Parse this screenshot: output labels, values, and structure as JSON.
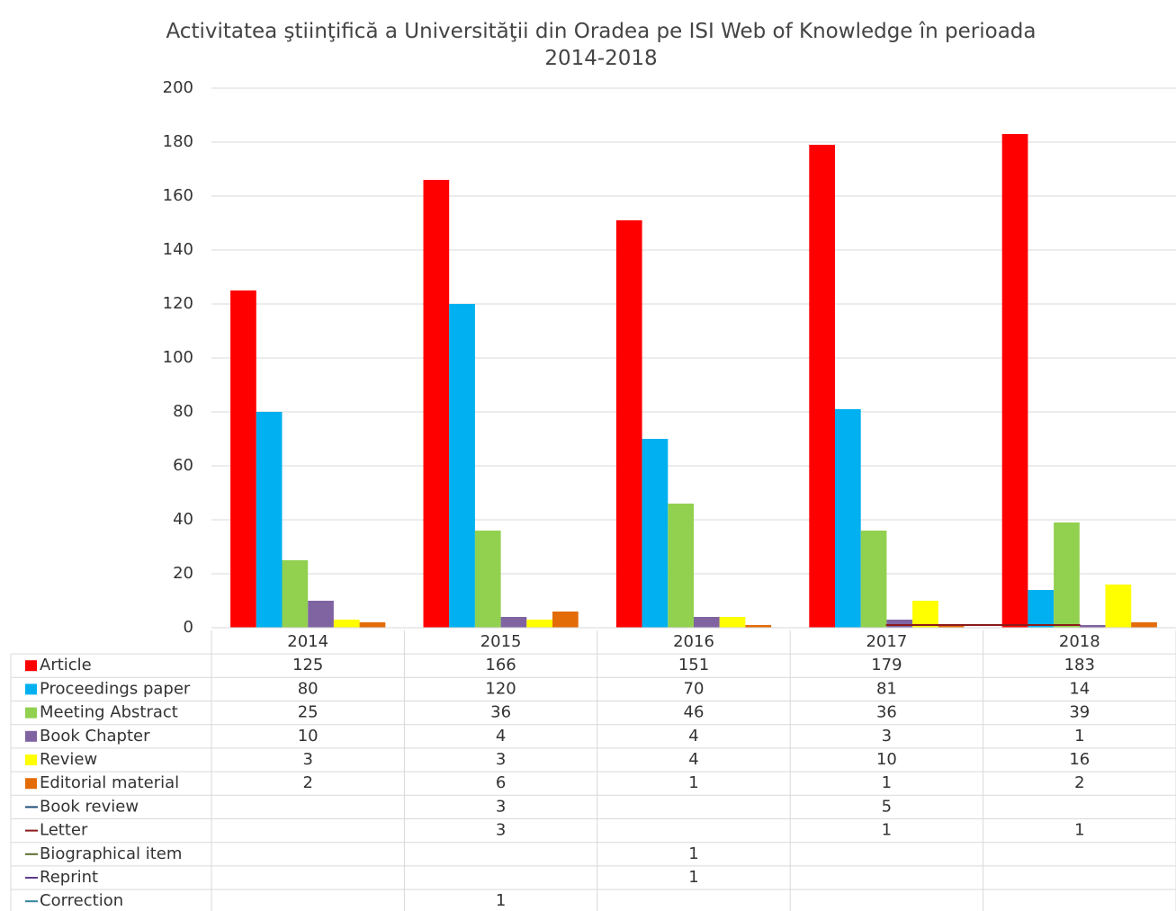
{
  "chart_data": {
    "type": "bar",
    "title": "Activitatea ştiinţifică a Universităţii din Oradea pe ISI Web of Knowledge în perioada 2014-2018",
    "categories": [
      "2014",
      "2015",
      "2016",
      "2017",
      "2018"
    ],
    "ylim": [
      0,
      200
    ],
    "yticks": [
      0,
      20,
      40,
      60,
      80,
      100,
      120,
      140,
      160,
      180,
      200
    ],
    "grid": true,
    "series": [
      {
        "name": "Article",
        "color": "#ff0000",
        "type": "bar",
        "values": [
          125,
          166,
          151,
          179,
          183
        ]
      },
      {
        "name": "Proceedings paper",
        "color": "#00b0f0",
        "type": "bar",
        "values": [
          80,
          120,
          70,
          81,
          14
        ]
      },
      {
        "name": "Meeting Abstract",
        "color": "#92d050",
        "type": "bar",
        "values": [
          25,
          36,
          46,
          36,
          39
        ]
      },
      {
        "name": "Book Chapter",
        "color": "#8064a2",
        "type": "bar",
        "values": [
          10,
          4,
          4,
          3,
          1
        ]
      },
      {
        "name": "Review",
        "color": "#ffff00",
        "type": "bar",
        "values": [
          3,
          3,
          4,
          10,
          16
        ]
      },
      {
        "name": "Editorial material",
        "color": "#e36c09",
        "type": "bar",
        "values": [
          2,
          6,
          1,
          1,
          2
        ]
      },
      {
        "name": "Book review",
        "color": "#1f4e79",
        "type": "line",
        "values": [
          null,
          3,
          null,
          5,
          null
        ]
      },
      {
        "name": "Letter",
        "color": "#8b1a1a",
        "type": "line",
        "values": [
          null,
          3,
          null,
          1,
          1
        ]
      },
      {
        "name": "Biographical item",
        "color": "#5a6b2c",
        "type": "line",
        "values": [
          null,
          null,
          1,
          null,
          null
        ]
      },
      {
        "name": "Reprint",
        "color": "#5c3c8c",
        "type": "line",
        "values": [
          null,
          null,
          1,
          null,
          null
        ]
      },
      {
        "name": "Correction",
        "color": "#31849b",
        "type": "line",
        "values": [
          null,
          1,
          null,
          null,
          null
        ]
      }
    ]
  }
}
